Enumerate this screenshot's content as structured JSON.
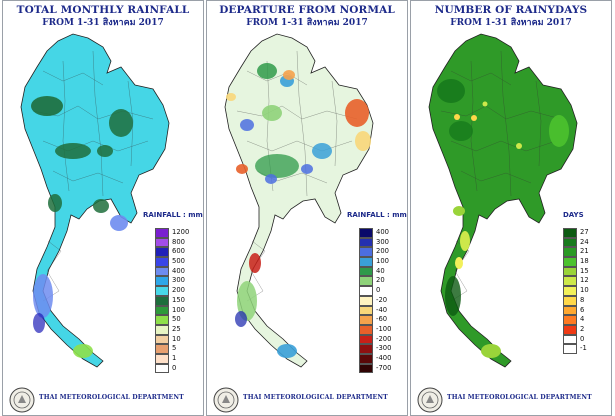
{
  "panels": [
    {
      "title": "TOTAL MONTHLY RAINFALL",
      "subtitle": "FROM 1-31 สิงหาคม 2017",
      "unit": "RAINFALL : mm.",
      "department": "THAI METEOROLOGICAL DEPARTMENT",
      "map_fill": "#45d6e6",
      "legend": [
        {
          "label": "1200",
          "color": "#7a1fd0"
        },
        {
          "label": "800",
          "color": "#a24de8"
        },
        {
          "label": "600",
          "color": "#2020b8"
        },
        {
          "label": "500",
          "color": "#3a45e8"
        },
        {
          "label": "400",
          "color": "#6e8cf0"
        },
        {
          "label": "300",
          "color": "#2ea7e8"
        },
        {
          "label": "200",
          "color": "#48d8e8"
        },
        {
          "label": "150",
          "color": "#1e6e3c"
        },
        {
          "label": "100",
          "color": "#2e9a3a"
        },
        {
          "label": "50",
          "color": "#8ee04a"
        },
        {
          "label": "25",
          "color": "#e8f5c4"
        },
        {
          "label": "10",
          "color": "#f3cfa2"
        },
        {
          "label": "5",
          "color": "#e8a070"
        },
        {
          "label": "1",
          "color": "#ffe0c8"
        },
        {
          "label": "0",
          "color": "#ffffff"
        }
      ]
    },
    {
      "title": "DEPARTURE FROM NORMAL",
      "subtitle": "FROM 1-31 สิงหาคม 2017",
      "unit": "RAINFALL : mm.",
      "department": "THAI METEOROLOGICAL DEPARTMENT",
      "map_fill": "#e6f5df",
      "legend": [
        {
          "label": "400",
          "color": "#0a0a6a"
        },
        {
          "label": "300",
          "color": "#2430b0"
        },
        {
          "label": "200",
          "color": "#4c6ee0"
        },
        {
          "label": "100",
          "color": "#3aa0d8"
        },
        {
          "label": "40",
          "color": "#2f9a4a"
        },
        {
          "label": "20",
          "color": "#8fd37a"
        },
        {
          "label": "0",
          "color": "#ffffff"
        },
        {
          "label": "-20",
          "color": "#fff4c0"
        },
        {
          "label": "-40",
          "color": "#f8d77a"
        },
        {
          "label": "-60",
          "color": "#f5a24c"
        },
        {
          "label": "-100",
          "color": "#e8602a"
        },
        {
          "label": "-200",
          "color": "#c82018"
        },
        {
          "label": "-300",
          "color": "#8e1010"
        },
        {
          "label": "-400",
          "color": "#5a0808"
        },
        {
          "label": "-700",
          "color": "#300404"
        }
      ]
    },
    {
      "title": "NUMBER OF RAINYDAYS",
      "subtitle": "FROM 1-31 สิงหาคม 2017",
      "unit": "DAYS",
      "department": "THAI METEOROLOGICAL DEPARTMENT",
      "map_fill": "#2f9a28",
      "legend": [
        {
          "label": "27",
          "color": "#0d5a12"
        },
        {
          "label": "24",
          "color": "#177a1c"
        },
        {
          "label": "21",
          "color": "#2a9a24"
        },
        {
          "label": "18",
          "color": "#4cc22e"
        },
        {
          "label": "15",
          "color": "#9ad43a"
        },
        {
          "label": "12",
          "color": "#cde84a"
        },
        {
          "label": "10",
          "color": "#f2f05a"
        },
        {
          "label": "8",
          "color": "#ffd84a"
        },
        {
          "label": "6",
          "color": "#ffa830"
        },
        {
          "label": "4",
          "color": "#ff7a22"
        },
        {
          "label": "2",
          "color": "#f03a14"
        },
        {
          "label": "0",
          "color": "#ffffff"
        },
        {
          "label": "-1",
          "color": "#ffffff"
        }
      ]
    }
  ]
}
